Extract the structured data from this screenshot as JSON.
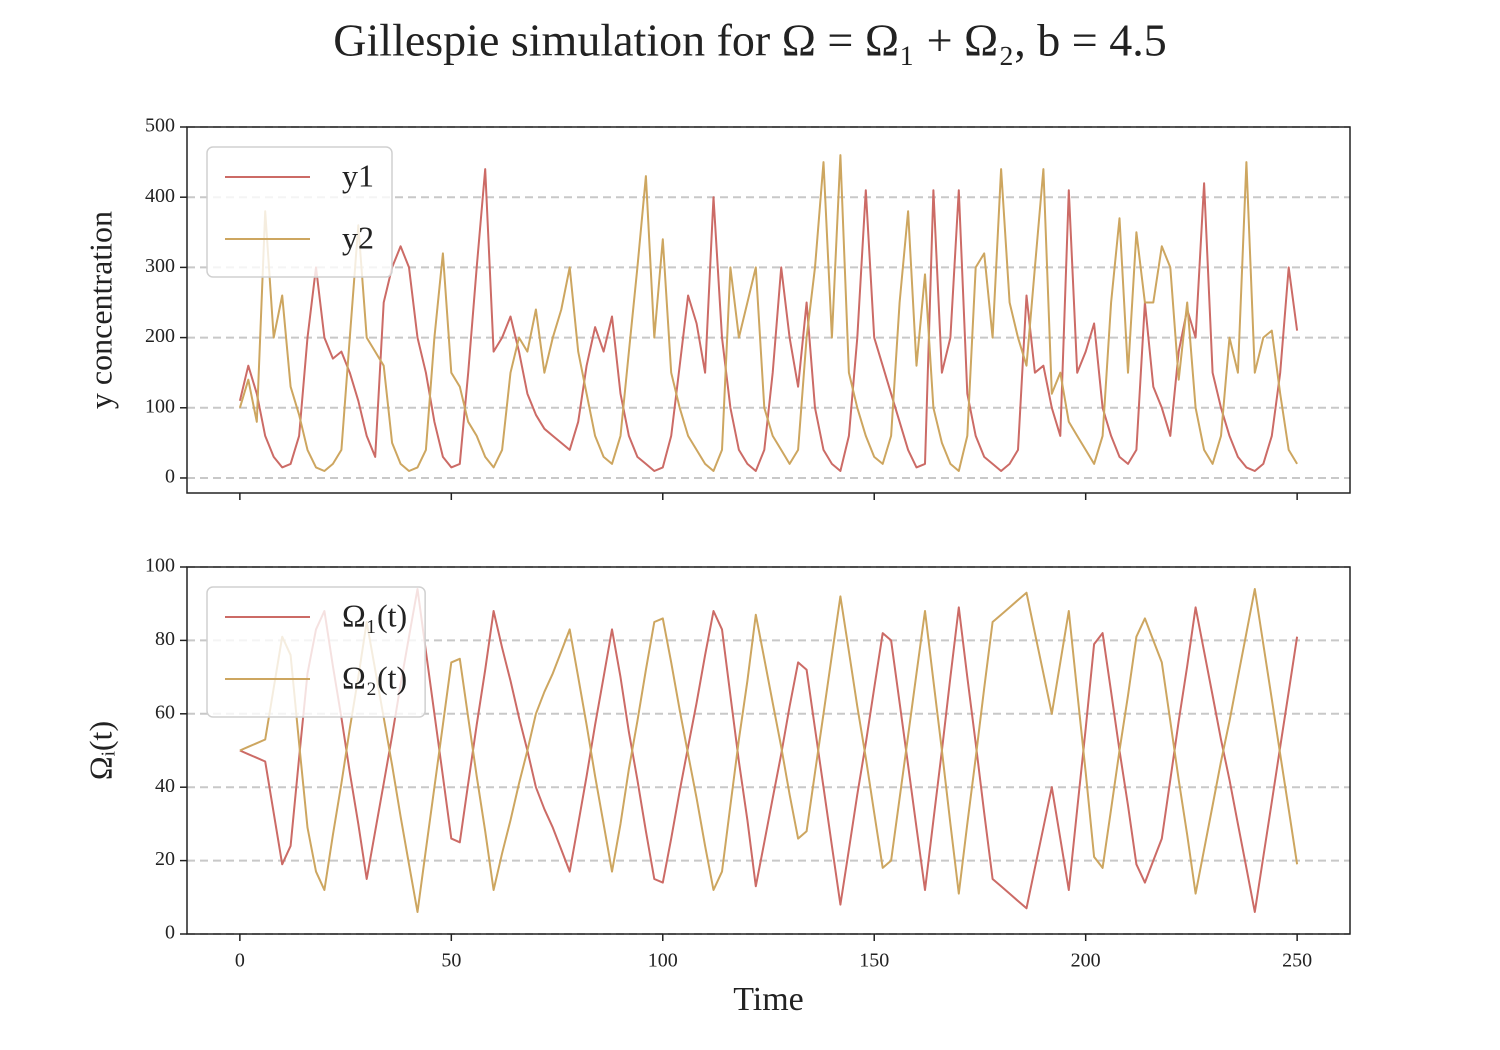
{
  "title": "Gillespie simulation for Ω = Ω₁ + Ω₂, b = 4.5",
  "chart_data": [
    {
      "type": "line",
      "ylabel": "y concentration",
      "legend": "upper left",
      "grid": true,
      "xlim": [
        -12.5,
        262.5
      ],
      "xticks": [
        0,
        50,
        100,
        150,
        200,
        250
      ],
      "ylim": [
        -21.4,
        500
      ],
      "yticks": [
        0,
        100,
        200,
        300,
        400,
        500
      ],
      "x": [
        0,
        2,
        4,
        6,
        8,
        10,
        12,
        14,
        16,
        18,
        20,
        22,
        24,
        26,
        28,
        30,
        32,
        34,
        36,
        38,
        40,
        42,
        44,
        46,
        48,
        50,
        52,
        54,
        56,
        58,
        60,
        62,
        64,
        66,
        68,
        70,
        72,
        74,
        76,
        78,
        80,
        82,
        84,
        86,
        88,
        90,
        92,
        94,
        96,
        98,
        100,
        102,
        104,
        106,
        108,
        110,
        112,
        114,
        116,
        118,
        120,
        122,
        124,
        126,
        128,
        130,
        132,
        134,
        136,
        138,
        140,
        142,
        144,
        146,
        148,
        150,
        152,
        154,
        156,
        158,
        160,
        162,
        164,
        166,
        168,
        170,
        172,
        174,
        176,
        178,
        180,
        182,
        184,
        186,
        188,
        190,
        192,
        194,
        196,
        198,
        200,
        202,
        204,
        206,
        208,
        210,
        212,
        214,
        216,
        218,
        220,
        222,
        224,
        226,
        228,
        230,
        232,
        234,
        236,
        238,
        240,
        242,
        244,
        246,
        248,
        250
      ],
      "series": [
        {
          "name": "y1",
          "color": "#cc6b66",
          "values": [
            110,
            160,
            120,
            60,
            30,
            15,
            20,
            60,
            200,
            300,
            200,
            170,
            180,
            150,
            110,
            60,
            30,
            250,
            300,
            330,
            300,
            200,
            150,
            80,
            30,
            15,
            20,
            150,
            300,
            440,
            180,
            200,
            230,
            180,
            120,
            90,
            70,
            60,
            50,
            40,
            80,
            160,
            215,
            180,
            230,
            120,
            60,
            30,
            20,
            10,
            15,
            60,
            160,
            260,
            220,
            150,
            400,
            200,
            100,
            40,
            20,
            10,
            40,
            150,
            300,
            200,
            130,
            250,
            100,
            40,
            20,
            10,
            60,
            200,
            410,
            200,
            160,
            120,
            80,
            40,
            15,
            20,
            410,
            150,
            200,
            410,
            120,
            60,
            30,
            20,
            10,
            20,
            40,
            260,
            150,
            160,
            100,
            60,
            410,
            150,
            180,
            220,
            100,
            60,
            30,
            20,
            40,
            250,
            130,
            100,
            60,
            180,
            240,
            200,
            420,
            150,
            100,
            60,
            30,
            15,
            10,
            20,
            60,
            150,
            300,
            210
          ]
        },
        {
          "name": "y2",
          "color": "#cda660",
          "values": [
            100,
            140,
            80,
            380,
            200,
            260,
            130,
            90,
            40,
            15,
            10,
            20,
            40,
            200,
            360,
            200,
            180,
            160,
            50,
            20,
            10,
            15,
            40,
            200,
            320,
            150,
            130,
            80,
            60,
            30,
            15,
            40,
            150,
            200,
            180,
            240,
            150,
            200,
            240,
            300,
            180,
            120,
            60,
            30,
            20,
            60,
            180,
            300,
            430,
            200,
            340,
            150,
            100,
            60,
            40,
            20,
            10,
            40,
            300,
            200,
            250,
            300,
            100,
            60,
            40,
            20,
            40,
            200,
            300,
            450,
            200,
            460,
            150,
            100,
            60,
            30,
            20,
            60,
            250,
            380,
            160,
            290,
            100,
            50,
            20,
            10,
            60,
            300,
            320,
            200,
            440,
            250,
            200,
            160,
            300,
            440,
            120,
            150,
            80,
            60,
            40,
            20,
            60,
            250,
            370,
            150,
            350,
            250,
            250,
            330,
            300,
            140,
            250,
            100,
            40,
            20,
            60,
            200,
            150,
            450,
            150,
            200,
            210,
            120,
            40,
            20
          ]
        }
      ]
    },
    {
      "type": "line",
      "ylabel": "Ωᵢ(t)",
      "xlabel": "Time",
      "legend": "upper left",
      "grid": true,
      "xlim": [
        -12.5,
        262.5
      ],
      "xticks": [
        0,
        50,
        100,
        150,
        200,
        250
      ],
      "ylim": [
        0,
        100
      ],
      "yticks": [
        0,
        20,
        40,
        60,
        80,
        100
      ],
      "x": [
        0,
        2,
        4,
        6,
        8,
        10,
        12,
        14,
        16,
        18,
        20,
        22,
        24,
        26,
        28,
        30,
        32,
        34,
        36,
        38,
        40,
        42,
        44,
        46,
        48,
        50,
        52,
        54,
        56,
        58,
        60,
        62,
        64,
        66,
        68,
        70,
        72,
        74,
        76,
        78,
        80,
        82,
        84,
        86,
        88,
        90,
        92,
        94,
        96,
        98,
        100,
        102,
        104,
        106,
        108,
        110,
        112,
        114,
        116,
        118,
        120,
        122,
        124,
        126,
        128,
        130,
        132,
        134,
        136,
        138,
        140,
        142,
        144,
        146,
        148,
        150,
        152,
        154,
        156,
        158,
        160,
        162,
        164,
        166,
        168,
        170,
        172,
        174,
        176,
        178,
        180,
        182,
        184,
        186,
        188,
        190,
        192,
        194,
        196,
        198,
        200,
        202,
        204,
        206,
        208,
        210,
        212,
        214,
        216,
        218,
        220,
        222,
        224,
        226,
        228,
        230,
        232,
        234,
        236,
        238,
        240,
        242,
        244,
        246,
        248,
        250
      ],
      "series": [
        {
          "name": "Ω₁(t)",
          "color": "#cc6b66",
          "values": [
            50,
            49,
            48,
            47,
            33,
            19,
            24,
            48,
            71,
            83,
            88,
            73,
            59,
            44,
            30,
            15,
            28,
            41,
            54,
            68,
            81,
            94,
            77,
            60,
            43,
            26,
            25,
            41,
            57,
            72,
            88,
            78,
            69,
            59,
            50,
            40,
            34,
            29,
            23,
            17,
            30,
            43,
            57,
            70,
            83,
            70,
            55,
            42,
            28,
            15,
            14,
            26,
            39,
            51,
            63,
            76,
            88,
            83,
            65,
            47,
            31,
            13,
            25,
            37,
            49,
            62,
            74,
            72,
            56,
            40,
            24,
            8,
            23,
            38,
            52,
            67,
            82,
            80,
            63,
            46,
            29,
            12,
            31,
            50,
            70,
            89,
            70,
            52,
            33,
            15,
            13,
            11,
            9,
            7,
            18,
            29,
            40,
            26,
            12,
            34,
            56,
            79,
            82,
            66,
            50,
            35,
            19,
            14,
            20,
            26,
            42,
            58,
            73,
            89,
            77,
            65,
            53,
            42,
            30,
            18,
            6,
            21,
            36,
            51,
            66,
            81
          ]
        },
        {
          "name": "Ω₂(t)",
          "color": "#cda660",
          "values": [
            50,
            51,
            52,
            53,
            67,
            81,
            76,
            52,
            29,
            17,
            12,
            27,
            41,
            56,
            70,
            85,
            72,
            59,
            46,
            32,
            19,
            6,
            23,
            40,
            57,
            74,
            75,
            59,
            43,
            28,
            12,
            22,
            31,
            41,
            50,
            60,
            66,
            71,
            77,
            83,
            70,
            57,
            43,
            30,
            17,
            30,
            45,
            58,
            72,
            85,
            86,
            74,
            61,
            49,
            37,
            24,
            12,
            17,
            35,
            53,
            69,
            87,
            75,
            63,
            51,
            38,
            26,
            28,
            44,
            60,
            76,
            92,
            77,
            62,
            48,
            33,
            18,
            20,
            37,
            54,
            71,
            88,
            69,
            50,
            30,
            11,
            30,
            48,
            67,
            85,
            87,
            89,
            91,
            93,
            82,
            71,
            60,
            74,
            88,
            66,
            44,
            21,
            18,
            34,
            50,
            65,
            81,
            86,
            80,
            74,
            58,
            42,
            27,
            11,
            23,
            35,
            47,
            58,
            70,
            82,
            94,
            79,
            64,
            49,
            34,
            19
          ]
        }
      ]
    }
  ]
}
